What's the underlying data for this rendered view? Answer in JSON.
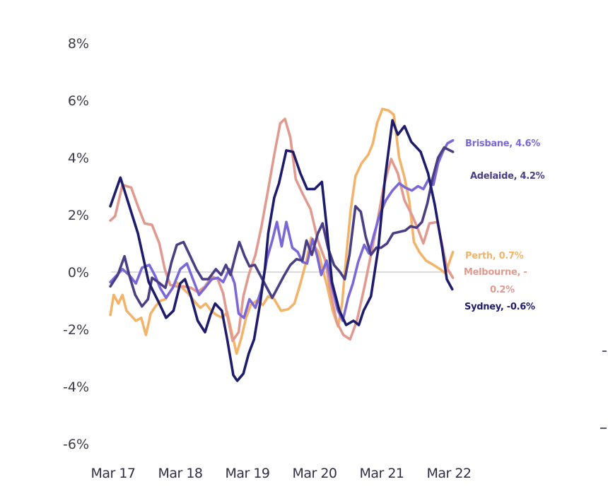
{
  "chart_data": {
    "type": "line",
    "title": "",
    "xlabel": "",
    "ylabel": "",
    "x_unit": "years since Mar 2017",
    "x_ticks": [
      {
        "t": 0,
        "label": "Mar 17"
      },
      {
        "t": 1,
        "label": "Mar 18"
      },
      {
        "t": 2,
        "label": "Mar 19"
      },
      {
        "t": 3,
        "label": "Mar 20"
      },
      {
        "t": 4,
        "label": "Mar 21"
      },
      {
        "t": 5,
        "label": "Mar 22"
      }
    ],
    "y_ticks": [
      {
        "v": 8,
        "label": "8%"
      },
      {
        "v": 6,
        "label": "6%"
      },
      {
        "v": 4,
        "label": "4%"
      },
      {
        "v": 2,
        "label": "2%"
      },
      {
        "v": 0,
        "label": "0%"
      },
      {
        "v": -2,
        "label": "-2%"
      },
      {
        "v": -4,
        "label": "-4%"
      },
      {
        "v": -6,
        "label": "-6%"
      }
    ],
    "xlim": [
      0,
      5.05
    ],
    "ylim": [
      -6,
      8
    ],
    "grid": false,
    "zero_line": true,
    "series": [
      {
        "name": "Sydney",
        "label": "Sydney, -0.6%",
        "color": "#1f1c6b",
        "points": [
          [
            -0.02,
            2.3
          ],
          [
            0.13,
            3.3
          ],
          [
            0.39,
            1.35
          ],
          [
            0.55,
            -0.35
          ],
          [
            0.71,
            -1.1
          ],
          [
            0.81,
            -1.6
          ],
          [
            0.92,
            -1.35
          ],
          [
            1.02,
            -0.4
          ],
          [
            1.09,
            -0.25
          ],
          [
            1.18,
            -0.85
          ],
          [
            1.28,
            -1.7
          ],
          [
            1.39,
            -2.1
          ],
          [
            1.47,
            -1.5
          ],
          [
            1.54,
            -1.1
          ],
          [
            1.64,
            -1.35
          ],
          [
            1.72,
            -2.35
          ],
          [
            1.81,
            -3.6
          ],
          [
            1.87,
            -3.8
          ],
          [
            1.96,
            -3.55
          ],
          [
            2.04,
            -2.85
          ],
          [
            2.12,
            -2.35
          ],
          [
            2.21,
            -1.1
          ],
          [
            2.28,
            0.1
          ],
          [
            2.33,
            1.35
          ],
          [
            2.42,
            2.6
          ],
          [
            2.49,
            3.1
          ],
          [
            2.6,
            4.25
          ],
          [
            2.7,
            4.2
          ],
          [
            2.81,
            3.45
          ],
          [
            2.91,
            2.9
          ],
          [
            3.02,
            2.9
          ],
          [
            3.13,
            3.15
          ],
          [
            3.2,
            1.6
          ],
          [
            3.28,
            -0.35
          ],
          [
            3.39,
            -1.35
          ],
          [
            3.49,
            -1.85
          ],
          [
            3.6,
            -1.7
          ],
          [
            3.68,
            -1.85
          ],
          [
            3.75,
            -1.35
          ],
          [
            3.86,
            -0.85
          ],
          [
            3.97,
            0.85
          ],
          [
            4.07,
            3.3
          ],
          [
            4.18,
            5.3
          ],
          [
            4.26,
            4.8
          ],
          [
            4.36,
            5.1
          ],
          [
            4.46,
            4.55
          ],
          [
            4.6,
            4.2
          ],
          [
            4.71,
            3.45
          ],
          [
            4.81,
            2.35
          ],
          [
            4.92,
            0.85
          ],
          [
            4.99,
            -0.25
          ],
          [
            5.07,
            -0.6
          ]
        ]
      },
      {
        "name": "Melbourne",
        "label": "Melbourne, -0.2%",
        "color": "#e09a8f",
        "points": [
          [
            -0.02,
            1.8
          ],
          [
            0.05,
            1.95
          ],
          [
            0.16,
            3.05
          ],
          [
            0.29,
            2.95
          ],
          [
            0.39,
            2.3
          ],
          [
            0.49,
            1.7
          ],
          [
            0.6,
            1.65
          ],
          [
            0.71,
            1.0
          ],
          [
            0.79,
            0.1
          ],
          [
            0.87,
            -0.45
          ],
          [
            0.97,
            -0.5
          ],
          [
            1.07,
            -0.5
          ],
          [
            1.18,
            -0.55
          ],
          [
            1.28,
            -0.7
          ],
          [
            1.39,
            -0.5
          ],
          [
            1.49,
            -0.15
          ],
          [
            1.58,
            -0.25
          ],
          [
            1.66,
            -0.75
          ],
          [
            1.72,
            -1.5
          ],
          [
            1.8,
            -2.4
          ],
          [
            1.89,
            -2.1
          ],
          [
            1.96,
            -0.85
          ],
          [
            2.04,
            -0.1
          ],
          [
            2.14,
            0.6
          ],
          [
            2.23,
            1.6
          ],
          [
            2.33,
            2.9
          ],
          [
            2.42,
            4.1
          ],
          [
            2.51,
            5.2
          ],
          [
            2.58,
            5.35
          ],
          [
            2.66,
            4.7
          ],
          [
            2.74,
            3.25
          ],
          [
            2.85,
            2.7
          ],
          [
            2.96,
            2.2
          ],
          [
            3.07,
            1.1
          ],
          [
            3.18,
            0.4
          ],
          [
            3.26,
            -0.7
          ],
          [
            3.35,
            -1.75
          ],
          [
            3.45,
            -2.2
          ],
          [
            3.55,
            -2.35
          ],
          [
            3.65,
            -1.7
          ],
          [
            3.76,
            -0.55
          ],
          [
            3.86,
            0.6
          ],
          [
            3.97,
            1.95
          ],
          [
            4.05,
            3.0
          ],
          [
            4.16,
            3.95
          ],
          [
            4.26,
            3.45
          ],
          [
            4.36,
            2.5
          ],
          [
            4.47,
            2.0
          ],
          [
            4.56,
            1.5
          ],
          [
            4.64,
            1.0
          ],
          [
            4.73,
            1.7
          ],
          [
            4.85,
            1.75
          ],
          [
            4.93,
            0.85
          ],
          [
            4.99,
            0.15
          ],
          [
            5.08,
            -0.2
          ]
        ]
      },
      {
        "name": "Brisbane",
        "label": "Brisbane, 4.6%",
        "color": "#7b68d6",
        "points": [
          [
            -0.02,
            -0.35
          ],
          [
            0.06,
            -0.15
          ],
          [
            0.16,
            0.1
          ],
          [
            0.26,
            -0.1
          ],
          [
            0.36,
            -0.4
          ],
          [
            0.45,
            0.15
          ],
          [
            0.56,
            0.25
          ],
          [
            0.65,
            -0.15
          ],
          [
            0.72,
            -0.55
          ],
          [
            0.81,
            -0.9
          ],
          [
            0.91,
            -0.55
          ],
          [
            1.02,
            0.1
          ],
          [
            1.12,
            0.3
          ],
          [
            1.21,
            -0.25
          ],
          [
            1.3,
            -0.8
          ],
          [
            1.39,
            -0.55
          ],
          [
            1.49,
            -0.25
          ],
          [
            1.58,
            -0.2
          ],
          [
            1.66,
            -0.35
          ],
          [
            1.75,
            0.1
          ],
          [
            1.83,
            -0.4
          ],
          [
            1.89,
            -1.45
          ],
          [
            1.97,
            -1.6
          ],
          [
            2.05,
            -0.95
          ],
          [
            2.14,
            -1.25
          ],
          [
            2.23,
            -0.6
          ],
          [
            2.31,
            0.45
          ],
          [
            2.39,
            1.1
          ],
          [
            2.46,
            1.75
          ],
          [
            2.53,
            0.9
          ],
          [
            2.6,
            1.75
          ],
          [
            2.69,
            0.85
          ],
          [
            2.77,
            0.7
          ],
          [
            2.84,
            0.35
          ],
          [
            2.91,
            0.3
          ],
          [
            2.99,
            1.15
          ],
          [
            3.06,
            0.55
          ],
          [
            3.12,
            -0.1
          ],
          [
            3.2,
            0.4
          ],
          [
            3.28,
            -0.5
          ],
          [
            3.36,
            -1.3
          ],
          [
            3.44,
            -1.7
          ],
          [
            3.52,
            -0.9
          ],
          [
            3.59,
            -0.4
          ],
          [
            3.67,
            0.35
          ],
          [
            3.76,
            0.95
          ],
          [
            3.83,
            0.65
          ],
          [
            3.91,
            1.35
          ],
          [
            3.99,
            2.0
          ],
          [
            4.08,
            2.5
          ],
          [
            4.18,
            2.85
          ],
          [
            4.28,
            3.1
          ],
          [
            4.37,
            2.95
          ],
          [
            4.47,
            2.85
          ],
          [
            4.56,
            3.0
          ],
          [
            4.64,
            2.9
          ],
          [
            4.72,
            3.25
          ],
          [
            4.79,
            3.05
          ],
          [
            4.86,
            3.8
          ],
          [
            4.93,
            4.2
          ],
          [
            5.0,
            4.5
          ],
          [
            5.08,
            4.6
          ]
        ]
      },
      {
        "name": "Adelaide",
        "label": "Adelaide, 4.2%",
        "color": "#4b3e84",
        "points": [
          [
            -0.02,
            -0.5
          ],
          [
            0.09,
            -0.1
          ],
          [
            0.19,
            0.55
          ],
          [
            0.26,
            -0.1
          ],
          [
            0.35,
            -0.8
          ],
          [
            0.45,
            -1.2
          ],
          [
            0.54,
            -0.95
          ],
          [
            0.6,
            -0.2
          ],
          [
            0.69,
            -0.35
          ],
          [
            0.8,
            -0.55
          ],
          [
            0.89,
            0.35
          ],
          [
            0.97,
            0.95
          ],
          [
            1.07,
            1.05
          ],
          [
            1.16,
            0.6
          ],
          [
            1.26,
            0.1
          ],
          [
            1.35,
            -0.25
          ],
          [
            1.44,
            -0.25
          ],
          [
            1.55,
            0.1
          ],
          [
            1.63,
            -0.1
          ],
          [
            1.7,
            0.25
          ],
          [
            1.77,
            -0.1
          ],
          [
            1.84,
            0.55
          ],
          [
            1.9,
            1.05
          ],
          [
            1.98,
            0.55
          ],
          [
            2.05,
            0.2
          ],
          [
            2.13,
            0.25
          ],
          [
            2.21,
            -0.1
          ],
          [
            2.3,
            -0.5
          ],
          [
            2.39,
            -0.9
          ],
          [
            2.47,
            -0.55
          ],
          [
            2.56,
            -0.15
          ],
          [
            2.66,
            0.25
          ],
          [
            2.75,
            0.45
          ],
          [
            2.84,
            0.4
          ],
          [
            2.9,
            1.1
          ],
          [
            2.98,
            0.6
          ],
          [
            3.07,
            1.35
          ],
          [
            3.14,
            1.7
          ],
          [
            3.22,
            0.85
          ],
          [
            3.31,
            0.25
          ],
          [
            3.4,
            0.0
          ],
          [
            3.47,
            -0.25
          ],
          [
            3.54,
            0.6
          ],
          [
            3.63,
            2.3
          ],
          [
            3.71,
            2.1
          ],
          [
            3.78,
            1.25
          ],
          [
            3.86,
            0.6
          ],
          [
            3.94,
            0.85
          ],
          [
            4.01,
            0.85
          ],
          [
            4.1,
            1.0
          ],
          [
            4.19,
            1.35
          ],
          [
            4.28,
            1.4
          ],
          [
            4.37,
            1.45
          ],
          [
            4.45,
            1.6
          ],
          [
            4.54,
            1.55
          ],
          [
            4.62,
            1.75
          ],
          [
            4.7,
            2.4
          ],
          [
            4.78,
            3.3
          ],
          [
            4.86,
            4.0
          ],
          [
            4.95,
            4.35
          ],
          [
            5.08,
            4.2
          ]
        ]
      },
      {
        "name": "Perth",
        "label": "Perth, 0.7%",
        "color": "#f2b46a",
        "points": [
          [
            -0.02,
            -1.5
          ],
          [
            0.03,
            -0.8
          ],
          [
            0.1,
            -1.1
          ],
          [
            0.16,
            -0.8
          ],
          [
            0.22,
            -1.35
          ],
          [
            0.3,
            -1.55
          ],
          [
            0.36,
            -1.7
          ],
          [
            0.44,
            -1.6
          ],
          [
            0.51,
            -2.2
          ],
          [
            0.58,
            -1.45
          ],
          [
            0.65,
            -1.2
          ],
          [
            0.73,
            -1.0
          ],
          [
            0.8,
            -0.95
          ],
          [
            0.88,
            -0.65
          ],
          [
            0.96,
            -0.35
          ],
          [
            1.05,
            -0.55
          ],
          [
            1.14,
            -0.75
          ],
          [
            1.24,
            -1.05
          ],
          [
            1.32,
            -1.25
          ],
          [
            1.4,
            -1.1
          ],
          [
            1.48,
            -1.35
          ],
          [
            1.56,
            -1.5
          ],
          [
            1.65,
            -1.6
          ],
          [
            1.72,
            -1.4
          ],
          [
            1.8,
            -2.25
          ],
          [
            1.86,
            -2.85
          ],
          [
            1.93,
            -2.3
          ],
          [
            2.0,
            -1.6
          ],
          [
            2.07,
            -1.15
          ],
          [
            2.16,
            -1.0
          ],
          [
            2.25,
            -1.15
          ],
          [
            2.33,
            -0.85
          ],
          [
            2.42,
            -0.95
          ],
          [
            2.52,
            -1.35
          ],
          [
            2.63,
            -1.3
          ],
          [
            2.72,
            -1.1
          ],
          [
            2.81,
            -0.4
          ],
          [
            2.9,
            0.4
          ],
          [
            2.97,
            1.2
          ],
          [
            3.02,
            0.9
          ],
          [
            3.08,
            0.7
          ],
          [
            3.14,
            0.1
          ],
          [
            3.21,
            -0.5
          ],
          [
            3.29,
            -1.35
          ],
          [
            3.37,
            -1.9
          ],
          [
            3.43,
            -1.1
          ],
          [
            3.5,
            0.75
          ],
          [
            3.56,
            2.2
          ],
          [
            3.63,
            3.35
          ],
          [
            3.72,
            3.8
          ],
          [
            3.82,
            4.1
          ],
          [
            3.89,
            4.5
          ],
          [
            3.95,
            5.2
          ],
          [
            4.03,
            5.7
          ],
          [
            4.12,
            5.65
          ],
          [
            4.2,
            5.5
          ],
          [
            4.28,
            4.0
          ],
          [
            4.36,
            3.3
          ],
          [
            4.43,
            2.5
          ],
          [
            4.5,
            1.05
          ],
          [
            4.58,
            0.7
          ],
          [
            4.68,
            0.4
          ],
          [
            4.79,
            0.25
          ],
          [
            4.89,
            0.1
          ],
          [
            4.97,
            -0.05
          ],
          [
            5.08,
            0.7
          ]
        ]
      }
    ]
  }
}
